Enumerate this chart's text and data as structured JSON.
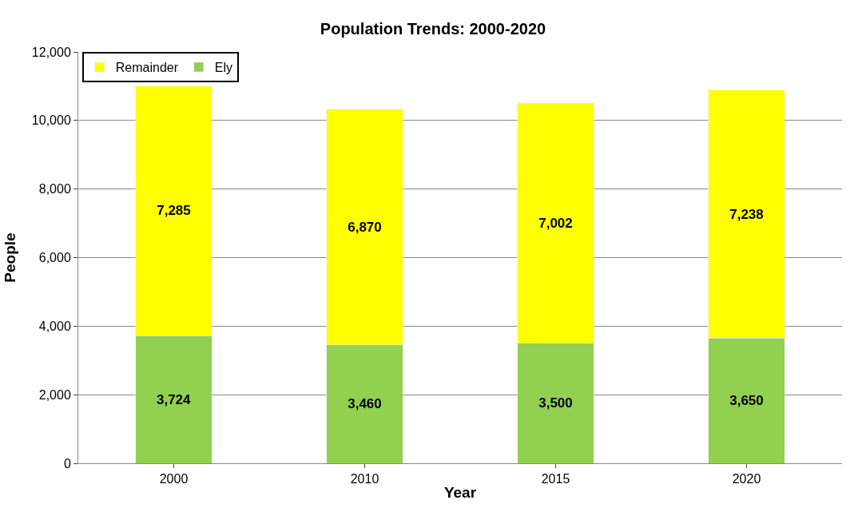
{
  "chart_data": {
    "type": "bar",
    "title": "Population Trends: 2000-2020",
    "xlabel": "Year",
    "ylabel": "People",
    "categories": [
      "2000",
      "2010",
      "2015",
      "2020"
    ],
    "series": [
      {
        "name": "Ely",
        "color": "#92d050",
        "values": [
          3724,
          3460,
          3500,
          3650
        ],
        "value_labels": [
          "3,724",
          "3,460",
          "3,500",
          "3,650"
        ]
      },
      {
        "name": "Remainder",
        "color": "#ffff00",
        "values": [
          7285,
          6870,
          7002,
          7238
        ],
        "value_labels": [
          "7,285",
          "6,870",
          "7,002",
          "7,238"
        ]
      }
    ],
    "stacked": true,
    "grid": "y",
    "legend": "top left",
    "ylim": [
      0,
      12000
    ],
    "yticks": [
      {
        "value": 0,
        "label": "0"
      },
      {
        "value": 2000,
        "label": "2,000"
      },
      {
        "value": 4000,
        "label": "4,000"
      },
      {
        "value": 6000,
        "label": "6,000"
      },
      {
        "value": 8000,
        "label": "8,000"
      },
      {
        "value": 10000,
        "label": "10,000"
      },
      {
        "value": 12000,
        "label": "12,000"
      }
    ]
  }
}
